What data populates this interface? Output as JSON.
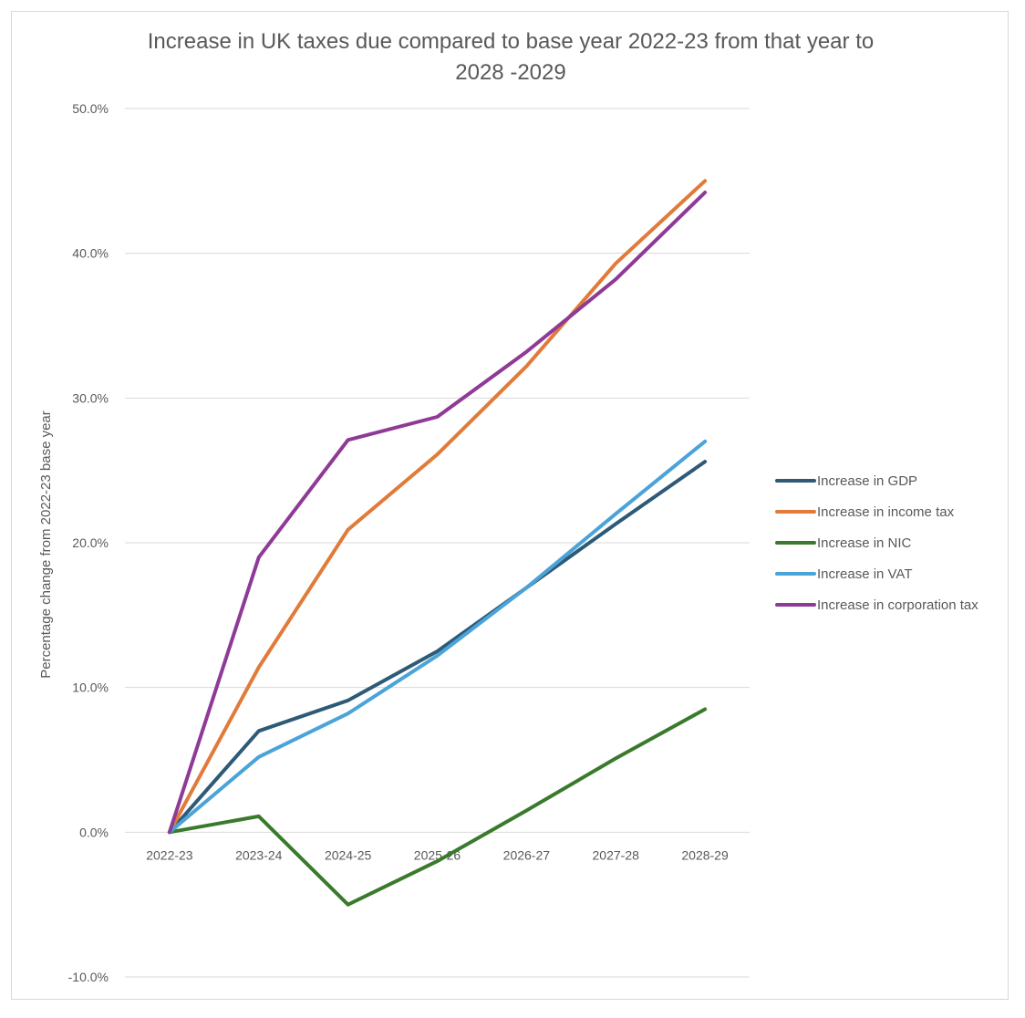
{
  "chart_data": {
    "type": "line",
    "title_lines": [
      "Increase in UK taxes due compared to base year 2022-23 from that year to",
      "2028 -2029"
    ],
    "xlabel": "",
    "ylabel": "Percentage change from 2022-23 base year",
    "categories": [
      "2022-23",
      "2023-24",
      "2024-25",
      "2025-26",
      "2026-27",
      "2027-28",
      "2028-29"
    ],
    "ylim": [
      -10,
      50
    ],
    "yticks": [
      -10,
      0,
      10,
      20,
      30,
      40,
      50
    ],
    "ytick_labels": [
      "-10.0%",
      "0.0%",
      "10.0%",
      "20.0%",
      "30.0%",
      "40.0%",
      "50.0%"
    ],
    "grid": true,
    "legend_position": "right",
    "series": [
      {
        "name": "Increase in GDP",
        "color": "#2e5a78",
        "values": [
          0,
          7.0,
          9.1,
          12.5,
          16.9,
          21.3,
          25.6
        ]
      },
      {
        "name": "Increase in income tax",
        "color": "#e07b39",
        "values": [
          0,
          11.4,
          20.9,
          26.1,
          32.2,
          39.3,
          45.0
        ]
      },
      {
        "name": "Increase in NIC",
        "color": "#3a7a2c",
        "values": [
          0,
          1.1,
          -5.0,
          -2.0,
          1.5,
          5.1,
          8.5
        ]
      },
      {
        "name": "Increase in VAT",
        "color": "#4aa3d9",
        "values": [
          0,
          5.2,
          8.2,
          12.2,
          16.9,
          22.0,
          27.0
        ]
      },
      {
        "name": "Increase in corporation tax",
        "color": "#8e3a96",
        "values": [
          0,
          19.0,
          27.1,
          28.7,
          33.2,
          38.2,
          44.2
        ]
      }
    ]
  }
}
